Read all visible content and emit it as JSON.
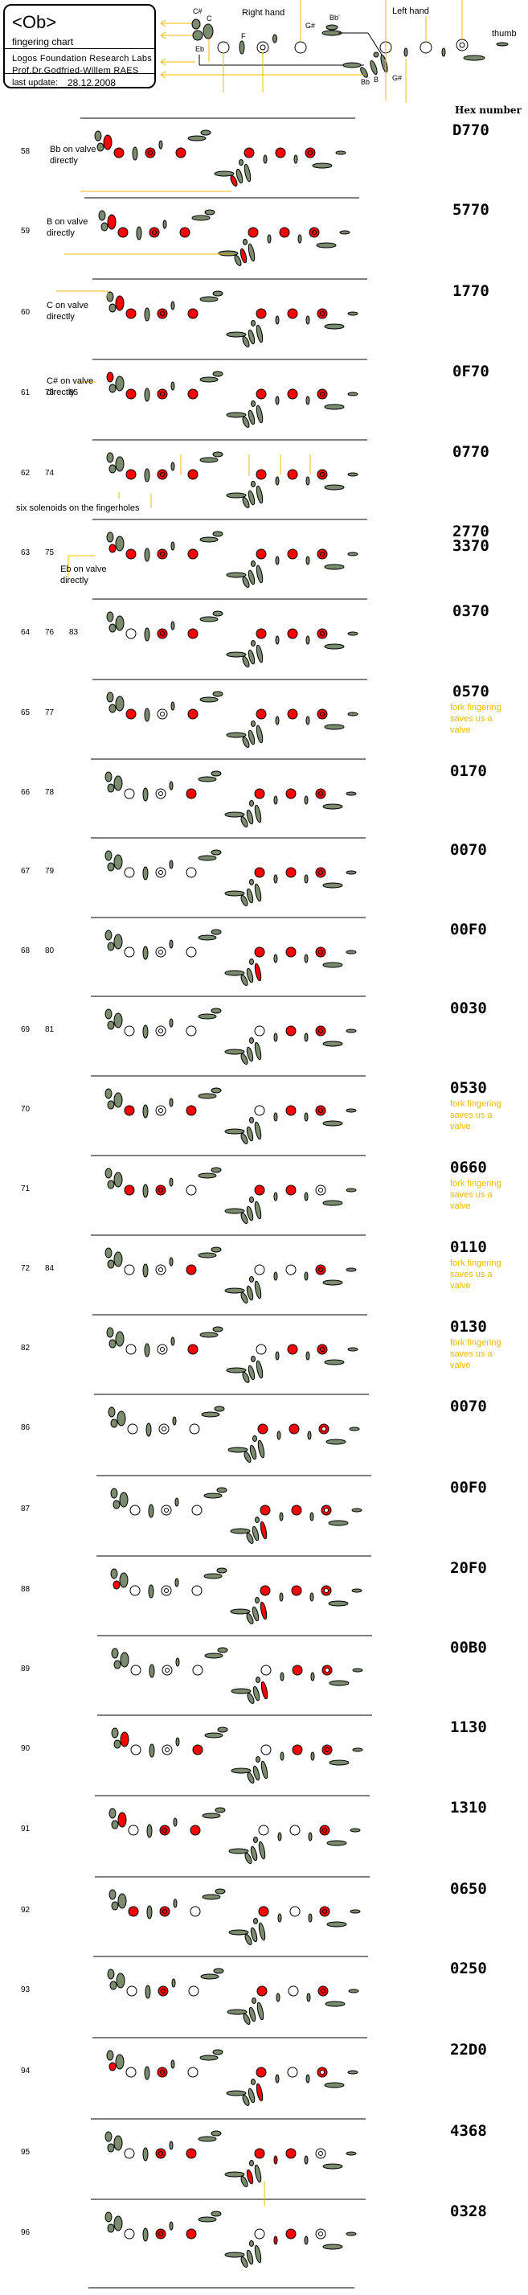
{
  "header": {
    "title": "<Ob>",
    "subtitle": "fingering chart",
    "organization": "Logos Foundation Research Labs",
    "author": "Prof.Dr.Godfried-Willem RAES",
    "last_update_label": "last update:",
    "last_update_date": "28.12.2008"
  },
  "key_legend": {
    "right_hand_label": "Right hand",
    "left_hand_label": "Left hand",
    "thumb_label": "thumb",
    "keys": [
      "C#",
      "C",
      "Eb",
      "F",
      "G#",
      "Bb'",
      "Bb",
      "B",
      "G#"
    ]
  },
  "hex_column_header": "Hex number",
  "colors": {
    "closed": "#ff0000",
    "key": "#7a8b6e",
    "annotation_line": "#f0b800",
    "note_text": "#f0b800"
  },
  "key_order": [
    "C#",
    "Eb",
    "C",
    "RH3",
    "F",
    "RH2",
    "side",
    "RH1",
    "G#",
    "Bb'",
    "Bbkey",
    "Bkey",
    "G#low",
    "LH3",
    "trill1",
    "LH2",
    "trill2",
    "LH1",
    "octave",
    "thumb"
  ],
  "rows": [
    {
      "labels": [
        "58"
      ],
      "hex": "D770",
      "notes": "Bb on valve directly",
      "note_color": "black",
      "closed": [
        "C",
        "RH3",
        "RH2",
        "RH1",
        "LH3",
        "LH2",
        "LH1",
        "Bbkey"
      ]
    },
    {
      "labels": [
        "59"
      ],
      "hex": "5770",
      "notes": "B on valve directly",
      "note_color": "black",
      "closed": [
        "C",
        "RH3",
        "RH2",
        "RH1",
        "LH3",
        "LH2",
        "LH1",
        "Bkey"
      ]
    },
    {
      "labels": [
        "60"
      ],
      "hex": "1770",
      "notes": "C on valve directly",
      "note_color": "black",
      "closed": [
        "C",
        "RH3",
        "RH2",
        "RH1",
        "LH3",
        "LH2",
        "LH1"
      ]
    },
    {
      "labels": [
        "61",
        "73",
        "85"
      ],
      "hex": "0F70",
      "notes": "C# on valve directly",
      "note_color": "black",
      "closed": [
        "C#",
        "RH3",
        "RH2",
        "RH1",
        "LH3",
        "LH2",
        "LH1"
      ]
    },
    {
      "labels": [
        "62",
        "74"
      ],
      "hex": "0770",
      "notes": "six solenoids on the fingerholes",
      "note_color": "black",
      "closed": [
        "RH3",
        "RH2",
        "RH1",
        "LH3",
        "LH2",
        "LH1"
      ]
    },
    {
      "labels": [
        "63",
        "75"
      ],
      "hex": "2770\n3370",
      "notes": "Eb on valve directly",
      "note_color": "black",
      "closed": [
        "Eb",
        "RH3",
        "RH2",
        "RH1",
        "LH3",
        "LH2",
        "LH1"
      ]
    },
    {
      "labels": [
        "64",
        "76",
        "83"
      ],
      "hex": "0370",
      "notes": "",
      "note_color": "black",
      "closed": [
        "RH2",
        "RH1",
        "LH3",
        "LH2",
        "LH1"
      ]
    },
    {
      "labels": [
        "65",
        "77"
      ],
      "hex": "0570",
      "notes": "fork fingering saves us a valve",
      "note_color": "orange",
      "closed": [
        "RH3",
        "RH1",
        "LH3",
        "LH2",
        "LH1"
      ]
    },
    {
      "labels": [
        "66",
        "78"
      ],
      "hex": "0170",
      "notes": "",
      "note_color": "black",
      "closed": [
        "RH1",
        "LH3",
        "LH2",
        "LH1"
      ]
    },
    {
      "labels": [
        "67",
        "79"
      ],
      "hex": "0070",
      "notes": "",
      "note_color": "black",
      "closed": [
        "LH3",
        "LH2",
        "LH1"
      ]
    },
    {
      "labels": [
        "68",
        "80"
      ],
      "hex": "00F0",
      "notes": "",
      "note_color": "black",
      "closed": [
        "LH3",
        "LH2",
        "LH1",
        "G#low"
      ]
    },
    {
      "labels": [
        "69",
        "81"
      ],
      "hex": "0030",
      "notes": "",
      "note_color": "black",
      "closed": [
        "LH2",
        "LH1"
      ]
    },
    {
      "labels": [
        "70"
      ],
      "hex": "0530",
      "notes": "fork fingering saves us a valve",
      "note_color": "orange",
      "closed": [
        "RH3",
        "RH1",
        "LH2",
        "LH1"
      ]
    },
    {
      "labels": [
        "71"
      ],
      "hex": "0660",
      "notes": "fork fingering saves us a valve",
      "note_color": "orange",
      "closed": [
        "RH3",
        "RH2",
        "LH3",
        "LH2"
      ]
    },
    {
      "labels": [
        "72",
        "84"
      ],
      "hex": "0110",
      "notes": "fork fingering saves us a valve",
      "note_color": "orange",
      "closed": [
        "RH1",
        "LH1"
      ]
    },
    {
      "labels": [
        "82"
      ],
      "hex": "0130",
      "notes": "fork fingering saves us a valve",
      "note_color": "orange",
      "closed": [
        "RH1",
        "LH2",
        "LH1"
      ]
    },
    {
      "labels": [
        "86"
      ],
      "hex": "0070",
      "notes": "",
      "note_color": "black",
      "closed": [
        "LH3",
        "LH2"
      ],
      "half": [
        "LH1"
      ]
    },
    {
      "labels": [
        "87"
      ],
      "hex": "00F0",
      "notes": "",
      "note_color": "black",
      "closed": [
        "LH3",
        "LH2",
        "G#low"
      ],
      "half": [
        "LH1"
      ]
    },
    {
      "labels": [
        "88"
      ],
      "hex": "20F0",
      "notes": "",
      "note_color": "black",
      "closed": [
        "Eb",
        "LH3",
        "LH2",
        "G#low"
      ],
      "half": [
        "LH1"
      ]
    },
    {
      "labels": [
        "89"
      ],
      "hex": "00B0",
      "notes": "",
      "note_color": "black",
      "closed": [
        "LH2",
        "G#low"
      ],
      "half": [
        "LH1"
      ]
    },
    {
      "labels": [
        "90"
      ],
      "hex": "1130",
      "notes": "",
      "note_color": "black",
      "closed": [
        "C",
        "RH1",
        "LH2",
        "LH1"
      ]
    },
    {
      "labels": [
        "91"
      ],
      "hex": "1310",
      "notes": "",
      "note_color": "black",
      "closed": [
        "C",
        "RH2",
        "RH1",
        "LH1"
      ]
    },
    {
      "labels": [
        "92"
      ],
      "hex": "0650",
      "notes": "",
      "note_color": "black",
      "closed": [
        "RH3",
        "RH2",
        "LH3",
        "LH1"
      ]
    },
    {
      "labels": [
        "93"
      ],
      "hex": "0250",
      "notes": "",
      "note_color": "black",
      "closed": [
        "RH2",
        "LH3",
        "LH1"
      ]
    },
    {
      "labels": [
        "94"
      ],
      "hex": "22D0",
      "notes": "",
      "note_color": "black",
      "closed": [
        "Eb",
        "RH2",
        "LH3",
        "G#low"
      ],
      "half": [
        "LH1"
      ]
    },
    {
      "labels": [
        "95"
      ],
      "hex": "4368",
      "notes": "",
      "note_color": "black",
      "closed": [
        "RH2",
        "RH1",
        "LH3",
        "LH2",
        "Bkey",
        "trill1"
      ]
    },
    {
      "labels": [
        "96"
      ],
      "hex": "0328",
      "notes": "",
      "note_color": "black",
      "closed": [
        "RH2",
        "RH1",
        "LH2",
        "trill1"
      ]
    }
  ]
}
